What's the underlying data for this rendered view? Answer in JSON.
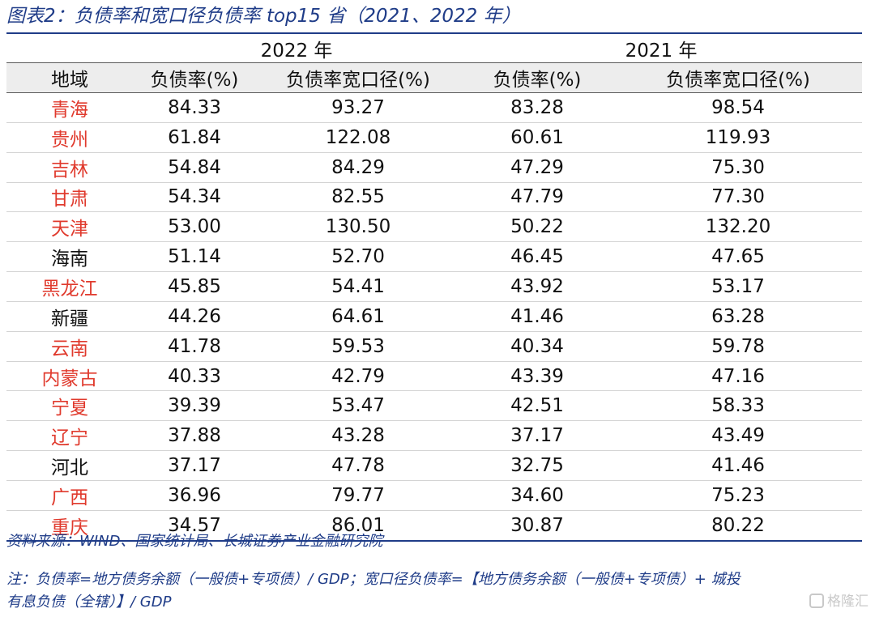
{
  "title": "图表2：负债率和宽口径负债率 top15 省（2021、2022 年）",
  "table": {
    "years": [
      "2022 年",
      "2021 年"
    ],
    "headers": [
      "地域",
      "负债率(%)",
      "负债率宽口径(%)",
      "负债率(%)",
      "负债率宽口径(%)"
    ],
    "rows": [
      {
        "region": "青海",
        "highlight": true,
        "v": [
          "84.33",
          "93.27",
          "83.28",
          "98.54"
        ]
      },
      {
        "region": "贵州",
        "highlight": true,
        "v": [
          "61.84",
          "122.08",
          "60.61",
          "119.93"
        ]
      },
      {
        "region": "吉林",
        "highlight": true,
        "v": [
          "54.84",
          "84.29",
          "47.29",
          "75.30"
        ]
      },
      {
        "region": "甘肃",
        "highlight": true,
        "v": [
          "54.34",
          "82.55",
          "47.79",
          "77.30"
        ]
      },
      {
        "region": "天津",
        "highlight": true,
        "v": [
          "53.00",
          "130.50",
          "50.22",
          "132.20"
        ]
      },
      {
        "region": "海南",
        "highlight": false,
        "v": [
          "51.14",
          "52.70",
          "46.45",
          "47.65"
        ]
      },
      {
        "region": "黑龙江",
        "highlight": true,
        "v": [
          "45.85",
          "54.41",
          "43.92",
          "53.17"
        ]
      },
      {
        "region": "新疆",
        "highlight": false,
        "v": [
          "44.26",
          "64.61",
          "41.46",
          "63.28"
        ]
      },
      {
        "region": "云南",
        "highlight": true,
        "v": [
          "41.78",
          "59.53",
          "40.34",
          "59.78"
        ]
      },
      {
        "region": "内蒙古",
        "highlight": true,
        "v": [
          "40.33",
          "42.79",
          "43.39",
          "47.16"
        ]
      },
      {
        "region": "宁夏",
        "highlight": true,
        "v": [
          "39.39",
          "53.47",
          "42.51",
          "58.33"
        ]
      },
      {
        "region": "辽宁",
        "highlight": true,
        "v": [
          "37.88",
          "43.28",
          "37.17",
          "43.49"
        ]
      },
      {
        "region": "河北",
        "highlight": false,
        "v": [
          "37.17",
          "47.78",
          "32.75",
          "41.46"
        ]
      },
      {
        "region": "广西",
        "highlight": true,
        "v": [
          "36.96",
          "79.77",
          "34.60",
          "75.23"
        ]
      },
      {
        "region": "重庆",
        "highlight": true,
        "v": [
          "34.57",
          "86.01",
          "30.87",
          "80.22"
        ]
      }
    ]
  },
  "source": "资料来源：WIND、国家统计局、长城证券产业金融研究院",
  "note_lines": [
    "注：负债率=地方债务余额（一般债+专项债）/ GDP；宽口径负债率=【地方债务余额（一般债+专项债）+ 城投",
    "有息负债（全辖）】/ GDP"
  ],
  "watermark": "格隆汇",
  "colors": {
    "accent": "#1f3c88",
    "highlight_region": "#e03a2d",
    "header_bg": "#ededed"
  }
}
